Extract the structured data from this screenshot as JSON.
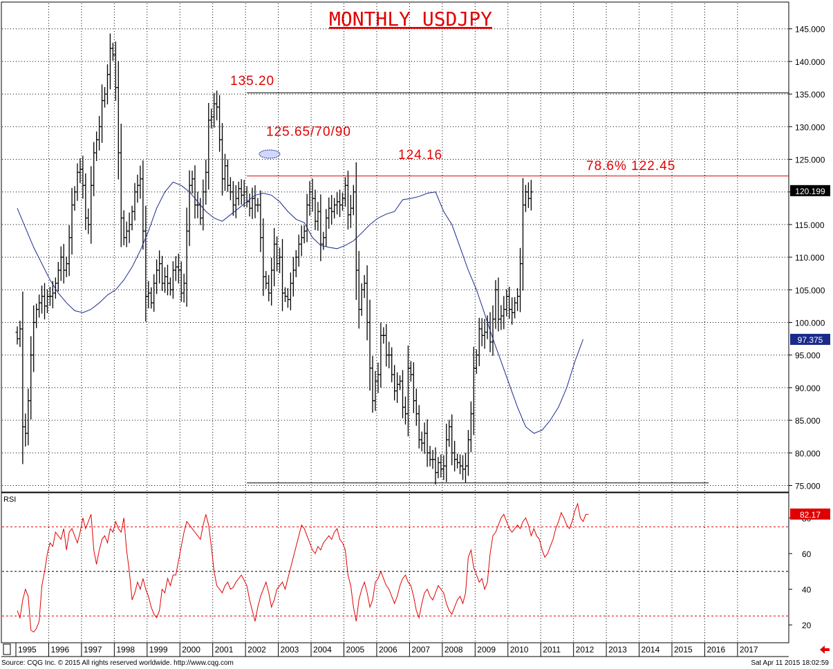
{
  "chart_data": [
    {
      "type": "ohlc",
      "title": "MONTHLY USDJPY",
      "y_axis": {
        "min": 75,
        "max": 145,
        "step": 5,
        "ticks": [
          "145.000",
          "140.000",
          "135.000",
          "130.000",
          "125.000",
          "120.000",
          "115.000",
          "110.000",
          "105.000",
          "100.000",
          "95.000",
          "90.000",
          "85.000",
          "80.000",
          "75.000"
        ]
      },
      "x_axis": {
        "years": [
          "1995",
          "1996",
          "1997",
          "1998",
          "1999",
          "2000",
          "2001",
          "2002",
          "2003",
          "2004",
          "2005",
          "2006",
          "2007",
          "2008",
          "2009",
          "2010",
          "2011",
          "2012",
          "2013",
          "2014",
          "2015",
          "2016",
          "2017"
        ]
      },
      "grid": true,
      "price_series": {
        "name": "USDJPY monthly",
        "close": [
          97.5,
          99.0,
          84.0,
          83.0,
          88.0,
          95.0,
          100.0,
          102.0,
          103.0,
          104.0,
          102.5,
          104.0,
          104.0,
          104.5,
          106.0,
          108.0,
          110.0,
          108.0,
          109.0,
          113.0,
          118.0,
          120.0,
          123.0,
          123.5,
          121.0,
          116.0,
          115.0,
          121.0,
          126.0,
          128.0,
          130.0,
          134.0,
          135.0,
          138.0,
          142.0,
          141.0,
          136.0,
          126.0,
          116.0,
          113.0,
          114.0,
          115.0,
          117.0,
          120.0,
          121.0,
          122.0,
          114.0,
          104.0,
          104.5,
          103.0,
          106.0,
          108.0,
          109.0,
          106.0,
          107.0,
          106.0,
          105.0,
          108.0,
          108.5,
          108.0,
          104.5,
          106.0,
          114.0,
          121.0,
          122.0,
          118.0,
          118.0,
          116.0,
          120.0,
          123.0,
          131.0,
          131.5,
          133.5,
          133.0,
          128.0,
          122.0,
          124.0,
          121.0,
          120.0,
          118.0,
          119.0,
          120.5,
          119.5,
          120.0,
          118.5,
          117.5,
          119.0,
          118.0,
          118.0,
          113.0,
          107.0,
          106.0,
          104.5,
          108.0,
          112.0,
          109.0,
          110.0,
          104.5,
          104.0,
          103.5,
          106.0,
          108.0,
          110.0,
          112.0,
          113.0,
          114.0,
          118.0,
          120.0,
          119.0,
          115.5,
          117.0,
          112.0,
          113.0,
          116.0,
          117.5,
          117.0,
          118.0,
          118.5,
          118.0,
          119.0,
          121.0,
          116.5,
          117.5,
          120.0,
          108.0,
          102.0,
          105.0,
          106.0,
          100.0,
          93.0,
          88.0,
          91.0,
          92.0,
          98.0,
          98.0,
          95.0,
          95.0,
          92.0,
          89.5,
          90.5,
          91.0,
          87.0,
          86.0,
          93.0,
          92.0,
          88.0,
          86.0,
          82.0,
          81.5,
          83.0,
          80.0,
          79.0,
          79.0,
          77.0,
          78.5,
          77.5,
          78.0,
          82.0,
          84.0,
          80.0,
          79.0,
          78.5,
          78.0,
          77.5,
          78.0,
          82.0,
          86.0,
          93.0,
          95.0,
          99.0,
          98.0,
          98.5,
          100.0,
          97.0,
          100.5,
          105.0,
          100.5,
          101.0,
          102.0,
          104.0,
          102.0,
          101.5,
          103.0,
          104.0,
          109.0,
          118.0,
          120.0,
          119.0,
          120.0
        ]
      },
      "moving_average": {
        "name": "MA",
        "values": [
          117.5,
          114.5,
          111.5,
          109.0,
          106.5,
          104.5,
          103.0,
          101.8,
          101.5,
          102.0,
          103.0,
          104.2,
          105.0,
          106.5,
          108.5,
          111.0,
          114.0,
          117.5,
          120.0,
          121.5,
          121.0,
          120.0,
          118.5,
          117.0,
          116.0,
          115.5,
          116.5,
          117.5,
          118.5,
          119.5,
          119.8,
          119.5,
          118.5,
          117.0,
          115.8,
          115.3,
          113.0,
          111.8,
          111.5,
          111.3,
          111.8,
          112.5,
          113.7,
          115.0,
          116.0,
          116.6,
          117.0,
          118.8,
          119.0,
          119.3,
          119.8,
          120.0,
          117.0,
          115.0,
          111.5,
          108.0,
          105.0,
          101.3,
          97.5,
          94.0,
          90.5,
          87.0,
          84.0,
          83.0,
          83.5,
          85.0,
          87.0,
          90.0,
          94.0,
          97.4
        ],
        "label_value": "97.375"
      },
      "current_value": "120.199",
      "annotations": [
        {
          "label": "135.20",
          "value": 135.2
        },
        {
          "label": "125.65/70/90",
          "value": 125.8
        },
        {
          "label": "124.16",
          "value": 124.16
        },
        {
          "label": "78.6% 122.45",
          "value": 122.45
        }
      ],
      "horizontal_lines": [
        135.2,
        122.45,
        75.4
      ]
    },
    {
      "type": "line",
      "name": "RSI",
      "y_axis": {
        "min": 10,
        "max": 90,
        "ticks": [
          "80",
          "60",
          "40",
          "20"
        ]
      },
      "reference_lines": [
        75,
        50,
        25
      ],
      "values": [
        28,
        24,
        34,
        40,
        36,
        17,
        16,
        18,
        22,
        42,
        50,
        60,
        66,
        64,
        72,
        70,
        68,
        74,
        62,
        72,
        74,
        70,
        66,
        72,
        80,
        74,
        78,
        82,
        62,
        54,
        62,
        68,
        70,
        66,
        74,
        72,
        78,
        74,
        72,
        80,
        62,
        50,
        34,
        38,
        44,
        40,
        46,
        40,
        36,
        30,
        26,
        24,
        28,
        40,
        38,
        46,
        42,
        48,
        48,
        56,
        64,
        72,
        78,
        76,
        74,
        72,
        70,
        68,
        76,
        82,
        76,
        64,
        50,
        42,
        40,
        38,
        42,
        44,
        40,
        41,
        44,
        46,
        48,
        45,
        42,
        34,
        28,
        22,
        30,
        36,
        40,
        44,
        38,
        30,
        34,
        40,
        42,
        44,
        40,
        46,
        52,
        58,
        64,
        70,
        76,
        74,
        70,
        66,
        62,
        60,
        64,
        62,
        66,
        68,
        70,
        68,
        72,
        74,
        68,
        66,
        62,
        48,
        42,
        30,
        22,
        34,
        40,
        44,
        38,
        30,
        34,
        44,
        46,
        50,
        46,
        42,
        40,
        36,
        32,
        36,
        42,
        46,
        48,
        44,
        42,
        36,
        28,
        24,
        32,
        38,
        40,
        36,
        34,
        38,
        42,
        40,
        38,
        32,
        28,
        26,
        30,
        34,
        36,
        32,
        38,
        58,
        62,
        52,
        48,
        44,
        46,
        40,
        44,
        60,
        70,
        72,
        76,
        80,
        82,
        78,
        74,
        72,
        74,
        76,
        74,
        78,
        80,
        76,
        70,
        74,
        70,
        68,
        62,
        58,
        60,
        64,
        68,
        74,
        78,
        83,
        80,
        76,
        74,
        78,
        84,
        88,
        80,
        78,
        82,
        82
      ],
      "current_value": "82.17"
    }
  ],
  "footer": {
    "source": "Source: CQG Inc. © 2015 All rights reserved worldwide. http://www.cqg.com",
    "timestamp": "Sat Apr 11 2015 18:02:59"
  }
}
